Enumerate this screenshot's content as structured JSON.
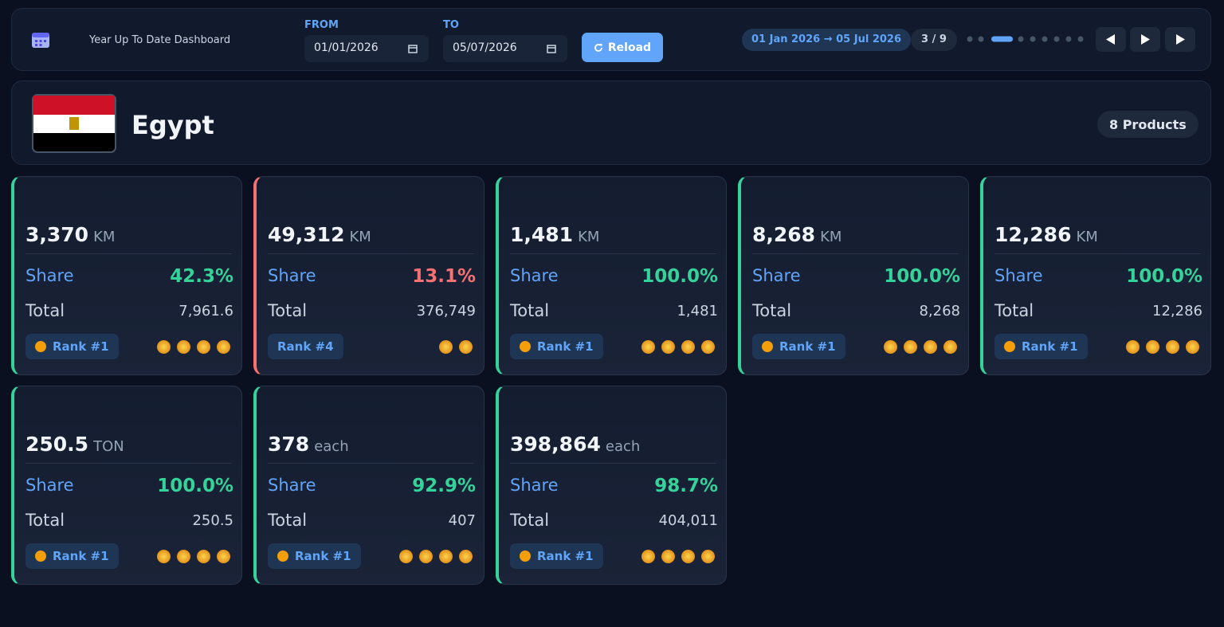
{
  "header": {
    "title": "Year Up To Date Dashboard",
    "from_label": "FROM",
    "from_value": "01/01/2026",
    "to_label": "TO",
    "to_value": "05/07/2026",
    "reload": "Reload",
    "range": "01 Jan 2026 → 05 Jul 2026",
    "page": "3 / 9"
  },
  "country": {
    "name": "Egypt",
    "products": "8 Products"
  },
  "cards": [
    {
      "value": "3,370",
      "unit": "KM",
      "share_label": "Share",
      "share": "42.3%",
      "total_label": "Total",
      "total": "7,961.6",
      "rank": "Rank #1",
      "coins": 4,
      "accent": "#34d399"
    },
    {
      "value": "49,312",
      "unit": "KM",
      "share_label": "Share",
      "share": "13.1%",
      "total_label": "Total",
      "total": "376,749",
      "rank": "Rank #4",
      "coins": 2,
      "accent": "#f87171"
    },
    {
      "value": "1,481",
      "unit": "KM",
      "share_label": "Share",
      "share": "100.0%",
      "total_label": "Total",
      "total": "1,481",
      "rank": "Rank #1",
      "coins": 4,
      "accent": "#34d399"
    },
    {
      "value": "8,268",
      "unit": "KM",
      "share_label": "Share",
      "share": "100.0%",
      "total_label": "Total",
      "total": "8,268",
      "rank": "Rank #1",
      "coins": 4,
      "accent": "#34d399"
    },
    {
      "value": "12,286",
      "unit": "KM",
      "share_label": "Share",
      "share": "100.0%",
      "total_label": "Total",
      "total": "12,286",
      "rank": "Rank #1",
      "coins": 4,
      "accent": "#34d399"
    },
    {
      "value": "250.5",
      "unit": "TON",
      "share_label": "Share",
      "share": "100.0%",
      "total_label": "Total",
      "total": "250.5",
      "rank": "Rank #1",
      "coins": 4,
      "accent": "#34d399"
    },
    {
      "value": "378",
      "unit": "each",
      "share_label": "Share",
      "share": "92.9%",
      "total_label": "Total",
      "total": "407",
      "rank": "Rank #1",
      "coins": 4,
      "accent": "#34d399"
    },
    {
      "value": "398,864",
      "unit": "each",
      "share_label": "Share",
      "share": "98.7%",
      "total_label": "Total",
      "total": "404,011",
      "rank": "Rank #1",
      "coins": 4,
      "accent": "#34d399"
    }
  ]
}
